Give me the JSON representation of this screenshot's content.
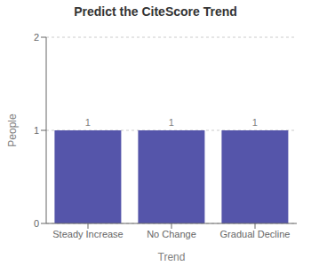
{
  "chart_data": {
    "type": "bar",
    "title": "Predict the CiteScore Trend",
    "categories": [
      "Steady Increase",
      "No Change",
      "Gradual Decline"
    ],
    "values": [
      1,
      1,
      1
    ],
    "xlabel": "Trend",
    "ylabel": "People",
    "ylim": [
      0,
      2
    ],
    "yticks": [
      0,
      1,
      2
    ],
    "color": "#5555aa",
    "grid": true,
    "data_labels": true
  }
}
